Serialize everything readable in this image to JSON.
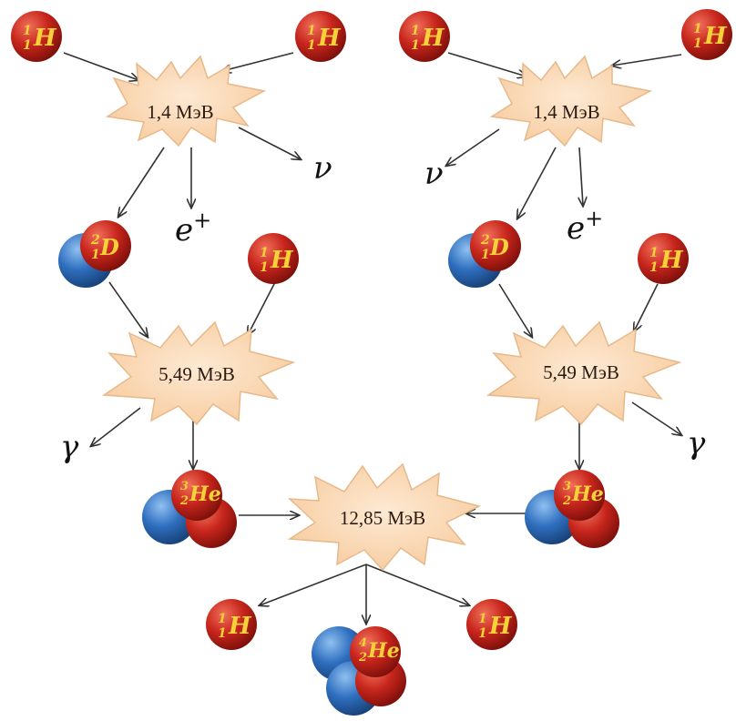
{
  "reactions": {
    "pp_energy": "1,4 МэВ",
    "pd_energy": "5,49 МэВ",
    "he_energy": "12,85 МэВ"
  },
  "particles": {
    "proton": {
      "symbol": "H",
      "mass_number": "1",
      "atomic_number": "1"
    },
    "deuterium": {
      "symbol": "D",
      "mass_number": "2",
      "atomic_number": "1"
    },
    "helium3": {
      "symbol": "He",
      "mass_number": "3",
      "atomic_number": "2"
    },
    "helium4": {
      "symbol": "He",
      "mass_number": "4",
      "atomic_number": "2"
    }
  },
  "emissions": {
    "neutrino": "ν",
    "positron": "e",
    "positron_charge": "+",
    "gamma": "γ"
  },
  "colors": {
    "proton": "#c8261c",
    "neutron": "#2f6fbf",
    "burst_fill": "#fbd9b5",
    "burst_stroke": "#e7b98a",
    "label": "#f6d13a"
  }
}
